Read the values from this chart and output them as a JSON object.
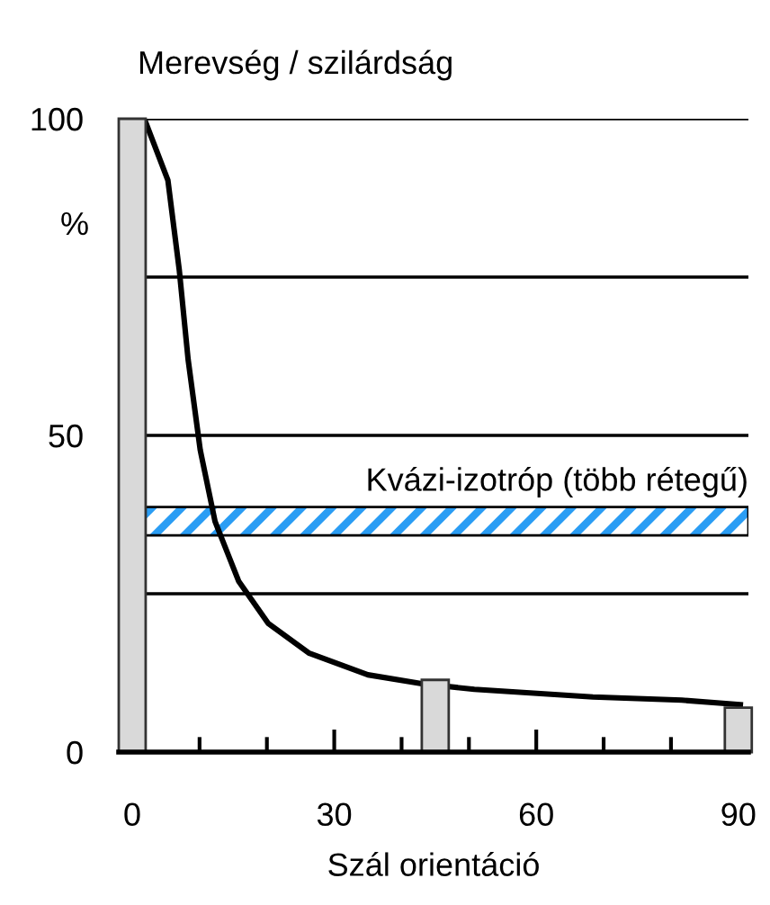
{
  "chart_data": {
    "type": "bar",
    "title": "Merevség / szilárdság",
    "ylabel": "%",
    "xlabel": "Szál orientáció",
    "series": [
      {
        "color": "#d9d9d9",
        "x": [
          0,
          45,
          90
        ],
        "values": [
          100,
          11.4,
          7
        ]
      },
      {
        "type": "line",
        "color": "#000000",
        "x": [
          1.8,
          5.3,
          7.0,
          8.3,
          10.1,
          12.3,
          15.8,
          20.2,
          26.3,
          35,
          43,
          50.8,
          68.4,
          81.6,
          90.3
        ],
        "values": [
          100,
          90.3,
          76,
          62,
          47.7,
          36.4,
          27,
          20.3,
          15.6,
          12.2,
          10.8,
          9.9,
          8.7,
          8.2,
          7.5
        ]
      }
    ],
    "bands": [
      {
        "axis": "y",
        "from": 34.2,
        "to": 38.7,
        "label": "Kvázi-izotróp (több rétegű)",
        "color": "#2a9df4"
      }
    ],
    "xlim": [
      -2,
      91.5
    ],
    "ylim": [
      0,
      100
    ],
    "xticks": [
      0,
      {
        "value": 10,
        "label": null
      },
      {
        "value": 20,
        "label": null
      },
      30,
      {
        "value": 40,
        "label": null
      },
      {
        "value": 50,
        "label": null
      },
      60,
      {
        "value": 70,
        "label": null
      },
      {
        "value": 80,
        "label": null
      },
      90
    ],
    "yticks": [
      0,
      {
        "value": 25,
        "label": null
      },
      50,
      {
        "value": 75,
        "label": null
      },
      100
    ],
    "grid": "y",
    "marker": "none",
    "line_style": "solid"
  }
}
